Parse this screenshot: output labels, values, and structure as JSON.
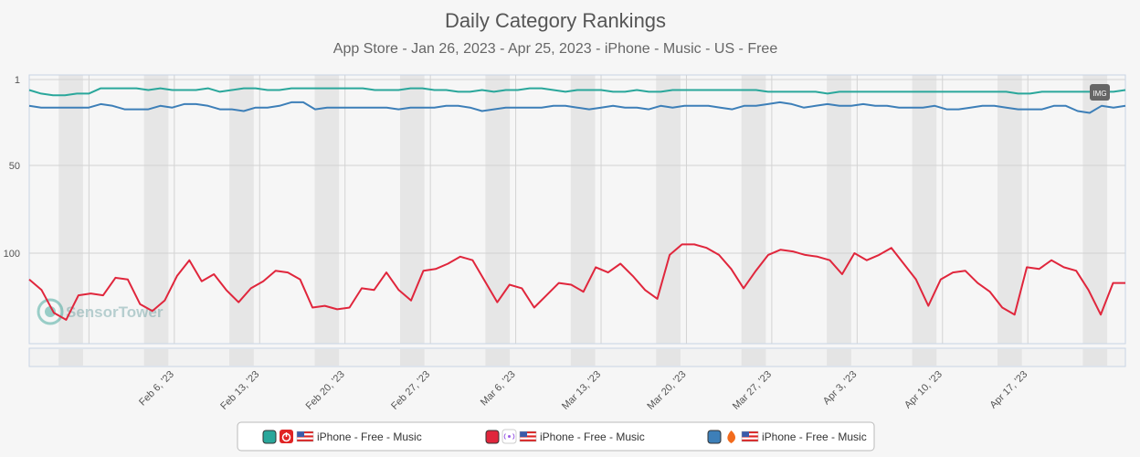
{
  "chart_data": {
    "type": "line",
    "title": "Daily Category Rankings",
    "subtitle": "App Store - Jan 26, 2023 - Apr 25, 2023 - iPhone - Music - US - Free",
    "y_ticks": [
      "1",
      "50",
      "100"
    ],
    "ylim": [
      1,
      150
    ],
    "y_inverted": true,
    "x_tick_labels": [
      "Feb 6, '23",
      "Feb 13, '23",
      "Feb 20, '23",
      "Feb 27, '23",
      "Mar 6, '23",
      "Mar 13, '23",
      "Mar 20, '23",
      "Mar 27, '23",
      "Apr 3, '23",
      "Apr 10, '23",
      "Apr 17, '23"
    ],
    "x_start": "Jan 26, 2023",
    "x_end": "Apr 25, 2023",
    "series": [
      {
        "name": "iPhone - Free - Music",
        "color": "#2aa79b",
        "icon": "power-icon",
        "icon_color": "#e02424",
        "values": [
          7,
          9,
          10,
          10,
          9,
          9,
          6,
          6,
          6,
          6,
          7,
          6,
          7,
          7,
          7,
          6,
          8,
          7,
          6,
          6,
          7,
          7,
          6,
          6,
          6,
          6,
          6,
          6,
          6,
          7,
          7,
          7,
          6,
          6,
          7,
          7,
          8,
          8,
          7,
          8,
          7,
          7,
          6,
          6,
          7,
          8,
          7,
          7,
          7,
          8,
          8,
          7,
          8,
          8,
          7,
          7,
          7,
          7,
          7,
          7,
          7,
          7,
          8,
          8,
          8,
          8,
          8,
          9,
          8,
          8,
          8,
          8,
          8,
          8,
          8,
          8,
          8,
          8,
          8,
          8,
          8,
          8,
          8,
          9,
          9,
          8,
          8,
          8,
          8,
          8,
          8,
          8,
          7
        ]
      },
      {
        "name": "iPhone - Free - Music",
        "color": "#e0263c",
        "icon": "radio-icon",
        "icon_color": "#ffffff",
        "values": [
          115,
          121,
          134,
          138,
          124,
          123,
          124,
          114,
          115,
          129,
          133,
          127,
          113,
          104,
          116,
          112,
          121,
          128,
          120,
          116,
          110,
          111,
          115,
          131,
          130,
          132,
          131,
          120,
          121,
          111,
          121,
          127,
          110,
          109,
          106,
          102,
          104,
          116,
          128,
          118,
          120,
          131,
          124,
          117,
          118,
          122,
          108,
          111,
          106,
          113,
          121,
          126,
          101,
          95,
          95,
          97,
          101,
          109,
          120,
          110,
          101,
          98,
          99,
          101,
          102,
          104,
          112,
          100,
          104,
          101,
          97,
          106,
          115,
          130,
          115,
          111,
          110,
          117,
          122,
          131,
          135,
          108,
          109,
          104,
          108,
          110,
          121,
          135,
          117,
          117
        ]
      },
      {
        "name": "iPhone - Free - Music",
        "color": "#3d7fb8",
        "icon": "flame-icon",
        "icon_color": "#f26b1d",
        "values": [
          16,
          17,
          17,
          17,
          17,
          17,
          15,
          16,
          18,
          18,
          18,
          16,
          17,
          15,
          15,
          16,
          18,
          18,
          19,
          17,
          17,
          16,
          14,
          14,
          18,
          17,
          17,
          17,
          17,
          17,
          17,
          18,
          17,
          17,
          17,
          16,
          16,
          17,
          19,
          18,
          17,
          17,
          17,
          17,
          16,
          16,
          17,
          18,
          17,
          16,
          17,
          17,
          18,
          16,
          17,
          16,
          16,
          16,
          17,
          18,
          16,
          16,
          15,
          14,
          15,
          17,
          16,
          15,
          16,
          16,
          15,
          16,
          16,
          17,
          17,
          17,
          16,
          18,
          18,
          17,
          16,
          16,
          17,
          18,
          18,
          18,
          16,
          16,
          19,
          20,
          16,
          17,
          16
        ]
      }
    ],
    "grid": true,
    "legend_position": "bottom-center",
    "watermark": "SensorTower",
    "export_button": "IMG"
  }
}
